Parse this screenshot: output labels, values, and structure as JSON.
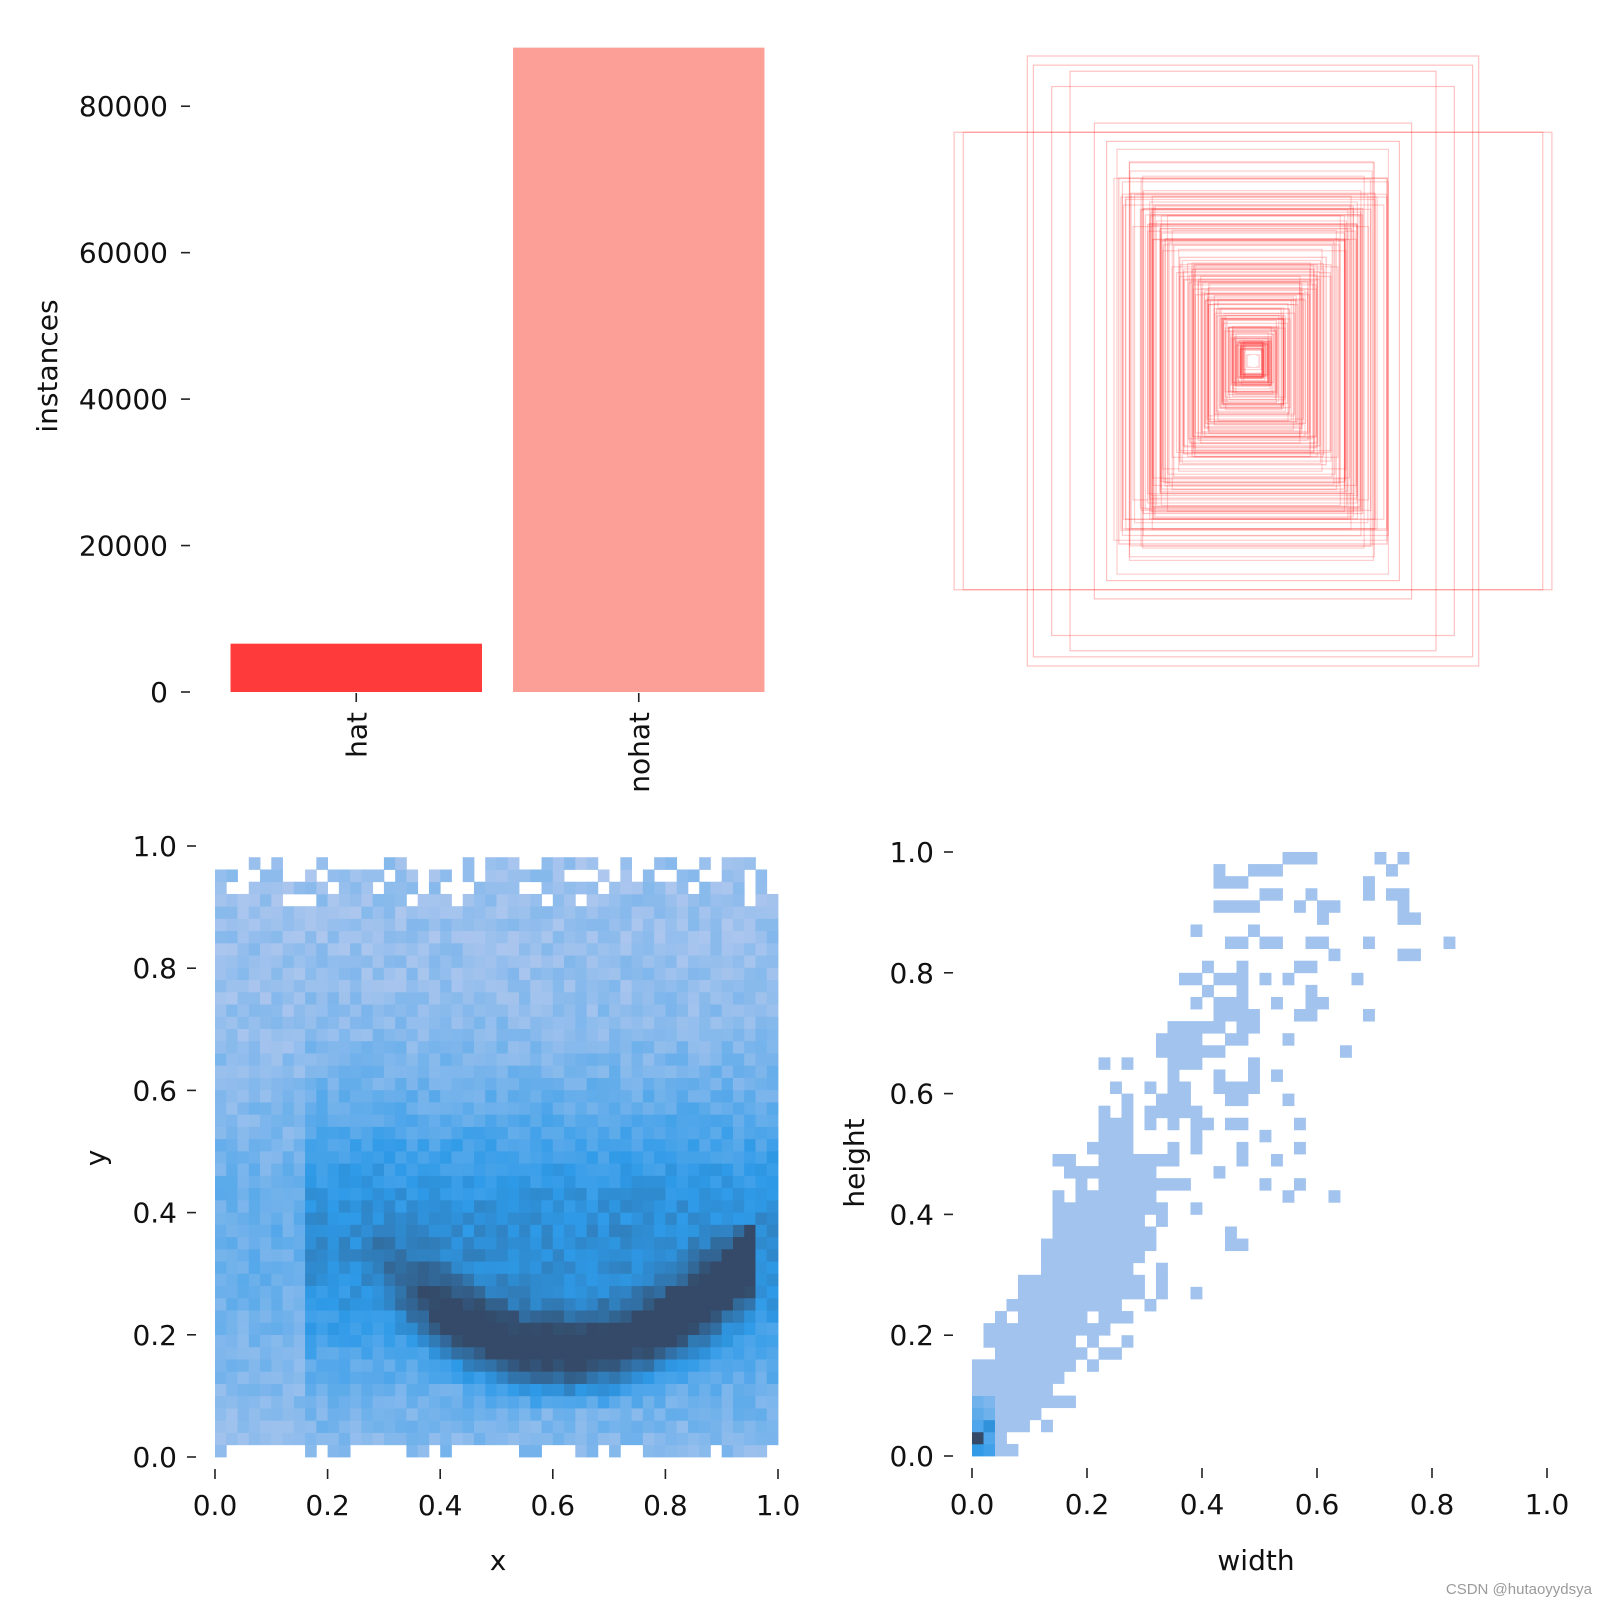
{
  "watermark": "CSDN @hutaoyydsya",
  "colors": {
    "hat": "#ff3a3a",
    "nohat": "#fc9f97",
    "box_stroke": "#ff2020",
    "hist_light": "#aec7ee",
    "hist_mid": "#2e9ae8",
    "hist_dark": "#344a68"
  },
  "chart_data": [
    {
      "type": "bar",
      "name": "class-instances",
      "categories": [
        "hat",
        "nohat"
      ],
      "values": [
        6600,
        88000
      ],
      "ylabel": "instances",
      "xlabel": "",
      "ylim": [
        0,
        90000
      ],
      "yticks": [
        0,
        20000,
        40000,
        60000,
        80000
      ],
      "ytick_labels": [
        "0",
        "20000",
        "40000",
        "60000",
        "80000"
      ]
    },
    {
      "type": "scatter",
      "name": "box-outlines",
      "description_kind": "overlaid bounding-box outlines centered at (0.5, 0.5)",
      "widths": [
        0.98,
        0.95,
        0.74,
        0.72,
        0.66,
        0.6,
        0.52,
        0.48,
        0.44,
        0.4,
        0.36,
        0.34,
        0.3,
        0.26,
        0.24,
        0.2,
        0.18,
        0.16,
        0.14,
        0.12,
        0.1,
        0.08,
        0.06,
        0.04,
        0.02
      ],
      "heights": [
        0.75,
        0.75,
        1.0,
        0.97,
        0.9,
        0.95,
        0.78,
        0.72,
        0.6,
        0.55,
        0.5,
        0.45,
        0.42,
        0.38,
        0.34,
        0.3,
        0.26,
        0.22,
        0.2,
        0.17,
        0.14,
        0.11,
        0.08,
        0.05,
        0.02
      ]
    },
    {
      "type": "heatmap",
      "name": "xy-distribution",
      "xlabel": "x",
      "ylabel": "y",
      "xlim": [
        0,
        1
      ],
      "ylim": [
        0,
        1
      ],
      "xticks": [
        "0.0",
        "0.2",
        "0.4",
        "0.6",
        "0.8",
        "1.0"
      ],
      "yticks": [
        "0.0",
        "0.2",
        "0.4",
        "0.6",
        "0.8",
        "1.0"
      ],
      "bins": 50,
      "density_peak": {
        "x": 0.6,
        "y": 0.18
      }
    },
    {
      "type": "heatmap",
      "name": "width-height-distribution",
      "xlabel": "width",
      "ylabel": "height",
      "xlim": [
        0,
        1
      ],
      "ylim": [
        0,
        1
      ],
      "xticks": [
        "0.0",
        "0.2",
        "0.4",
        "0.6",
        "0.8",
        "1.0"
      ],
      "yticks": [
        "0.0",
        "0.2",
        "0.4",
        "0.6",
        "0.8",
        "1.0"
      ],
      "bins": 50,
      "density_peak": {
        "x": 0.01,
        "y": 0.03
      }
    }
  ]
}
